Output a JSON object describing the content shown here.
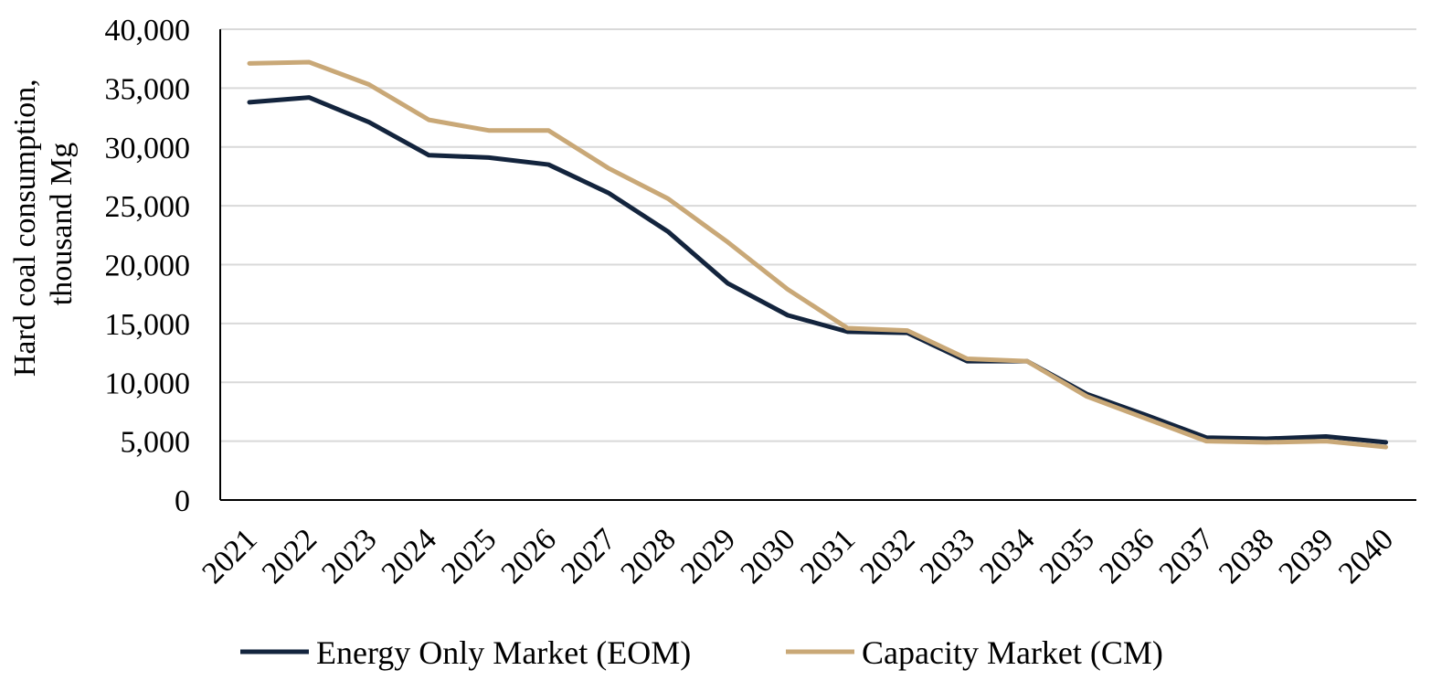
{
  "chart_data": {
    "type": "line",
    "title": "",
    "xlabel": "",
    "ylabel_lines": [
      "Hard coal consumption,",
      "thousand Mg"
    ],
    "ylim": [
      0,
      40000
    ],
    "yticks": [
      0,
      5000,
      10000,
      15000,
      20000,
      25000,
      30000,
      35000,
      40000
    ],
    "ytick_labels": [
      "0",
      "5,000",
      "10,000",
      "15,000",
      "20,000",
      "25,000",
      "30,000",
      "35,000",
      "40,000"
    ],
    "categories": [
      "2021",
      "2022",
      "2023",
      "2024",
      "2025",
      "2026",
      "2027",
      "2028",
      "2029",
      "2030",
      "2031",
      "2032",
      "2033",
      "2034",
      "2035",
      "2036",
      "2037",
      "2038",
      "2039",
      "2040"
    ],
    "grid": true,
    "legend_position": "bottom",
    "series": [
      {
        "name": "Energy Only Market (EOM)",
        "color": "#13243d",
        "values": [
          33800,
          34200,
          32100,
          29300,
          29100,
          28500,
          26100,
          22800,
          18400,
          15700,
          14300,
          14200,
          11800,
          11800,
          9000,
          7200,
          5300,
          5200,
          5400,
          4900
        ]
      },
      {
        "name": "Capacity Market (CM)",
        "color": "#c9a877",
        "values": [
          37100,
          37200,
          35300,
          32300,
          31400,
          31400,
          28200,
          25600,
          21900,
          17900,
          14600,
          14400,
          12000,
          11800,
          8800,
          6900,
          5000,
          4900,
          5000,
          4500
        ]
      }
    ]
  }
}
